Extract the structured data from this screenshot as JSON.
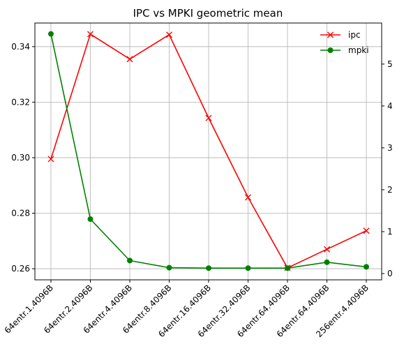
{
  "chart_data": {
    "type": "line",
    "title": "IPC vs MPKI geometric mean",
    "categories": [
      "64entr.1.4096B",
      "64entr.2.4096B",
      "64entr.4.4096B",
      "64entr.8.4096B",
      "64entr.16.4096B",
      "64entr.32.4096B",
      "64entr.64.4096B",
      "64entr.64.4096B",
      "256entr.4.4096B"
    ],
    "series": [
      {
        "name": "ipc",
        "axis": "left",
        "color": "#ff0000",
        "marker": "x",
        "values": [
          0.2995,
          0.3445,
          0.3355,
          0.3443,
          0.3143,
          0.2857,
          0.2603,
          0.267,
          0.2737
        ]
      },
      {
        "name": "mpki",
        "axis": "right",
        "color": "#008000",
        "marker": "circle",
        "values": [
          5.72,
          1.3,
          0.31,
          0.14,
          0.13,
          0.13,
          0.13,
          0.27,
          0.16
        ]
      }
    ],
    "y_left": {
      "ylim": [
        0.256,
        0.3485
      ],
      "ticks": [
        "0.26",
        "0.28",
        "0.30",
        "0.32",
        "0.34"
      ]
    },
    "y_right": {
      "ylim": [
        -0.15,
        5.98
      ],
      "ticks": [
        "0",
        "1",
        "2",
        "3",
        "4",
        "5"
      ]
    },
    "grid": true,
    "legend_position": "top-right",
    "legend": [
      "ipc",
      "mpki"
    ]
  }
}
